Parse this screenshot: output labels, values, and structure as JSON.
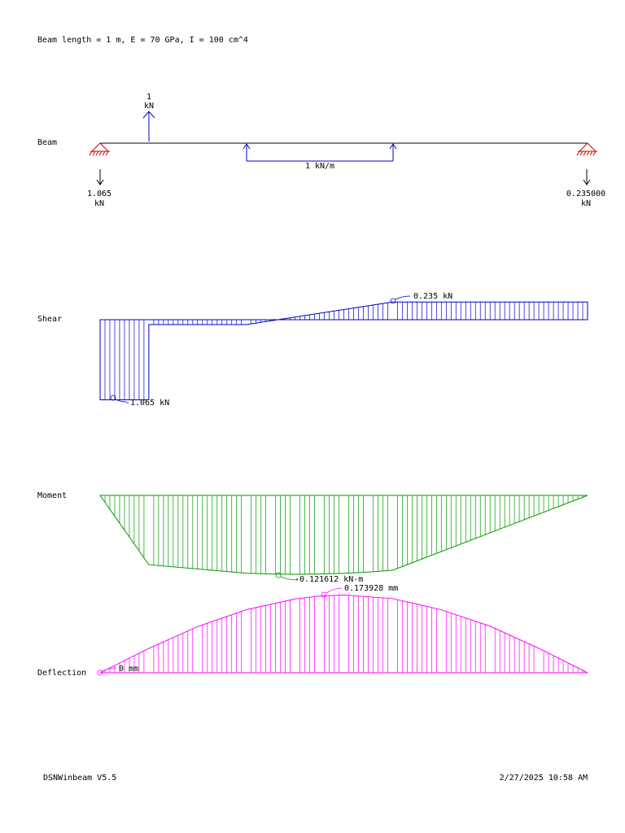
{
  "header": {
    "title": "Beam length = 1 m, E = 70 GPa, I = 100 cm^4"
  },
  "footer": {
    "app": "DSNWinbeam V5.5",
    "timestamp": "2/27/2025 10:58 AM"
  },
  "colors": {
    "beam": "#000000",
    "support": "#cc0000",
    "load": "#0000cc",
    "shear": "#0000cc",
    "moment": "#009900",
    "deflection": "#ff00ff"
  },
  "chart_data": [
    {
      "type": "area",
      "label": "Beam",
      "x_range_m": [
        0,
        1
      ],
      "point_loads": [
        {
          "x": 0.1,
          "value": 1,
          "value_text": "1",
          "unit": "kN",
          "direction": "up"
        }
      ],
      "distributed_loads": [
        {
          "x_start": 0.3,
          "x_end": 0.6,
          "value_text": "1 kN/m",
          "direction": "up"
        }
      ],
      "supports": [
        {
          "x": 0,
          "type": "pin"
        },
        {
          "x": 1,
          "type": "pin"
        }
      ],
      "reactions": [
        {
          "x": 0,
          "value_text": "1.065",
          "unit": "kN"
        },
        {
          "x": 1,
          "value_text": "0.235000",
          "unit": "kN"
        }
      ]
    },
    {
      "type": "area",
      "label": "Shear",
      "unit": "kN",
      "x": [
        0,
        0.1,
        0.1,
        0.3,
        0.6,
        1
      ],
      "y": [
        -1.065,
        -1.065,
        -0.065,
        -0.065,
        0.235,
        0.235
      ],
      "annotations": [
        {
          "text": "0.235 kN",
          "x": 0.6,
          "y": 0.235
        },
        {
          "text": "-1.065 kN",
          "x": 0.025,
          "y": -1.065
        }
      ]
    },
    {
      "type": "area",
      "label": "Moment",
      "unit": "kN-m",
      "x": [
        0,
        0.1,
        0.3,
        0.35,
        0.4,
        0.45,
        0.5,
        0.55,
        0.6,
        1
      ],
      "y": [
        0,
        -0.1065,
        -0.1195,
        -0.12075,
        -0.1212,
        -0.12085,
        -0.1197,
        -0.11775,
        -0.115,
        0
      ],
      "annotations": [
        {
          "text": "-0.121612 kN-m",
          "x": 0.365,
          "y": -0.121612
        }
      ]
    },
    {
      "type": "area",
      "label": "Deflection",
      "unit": "mm",
      "x": [
        0,
        0.1,
        0.2,
        0.3,
        0.4,
        0.45,
        0.5,
        0.6,
        0.7,
        0.8,
        0.9,
        1
      ],
      "y": [
        0,
        0.0545,
        0.1031,
        0.1409,
        0.1649,
        0.1713,
        0.1739,
        0.1658,
        0.1408,
        0.1041,
        0.0546,
        0
      ],
      "annotations": [
        {
          "text": "0.173928 mm",
          "x": 0.46,
          "y": 0.173928
        },
        {
          "text": "0 mm",
          "x": 0,
          "y": 0
        }
      ]
    }
  ]
}
